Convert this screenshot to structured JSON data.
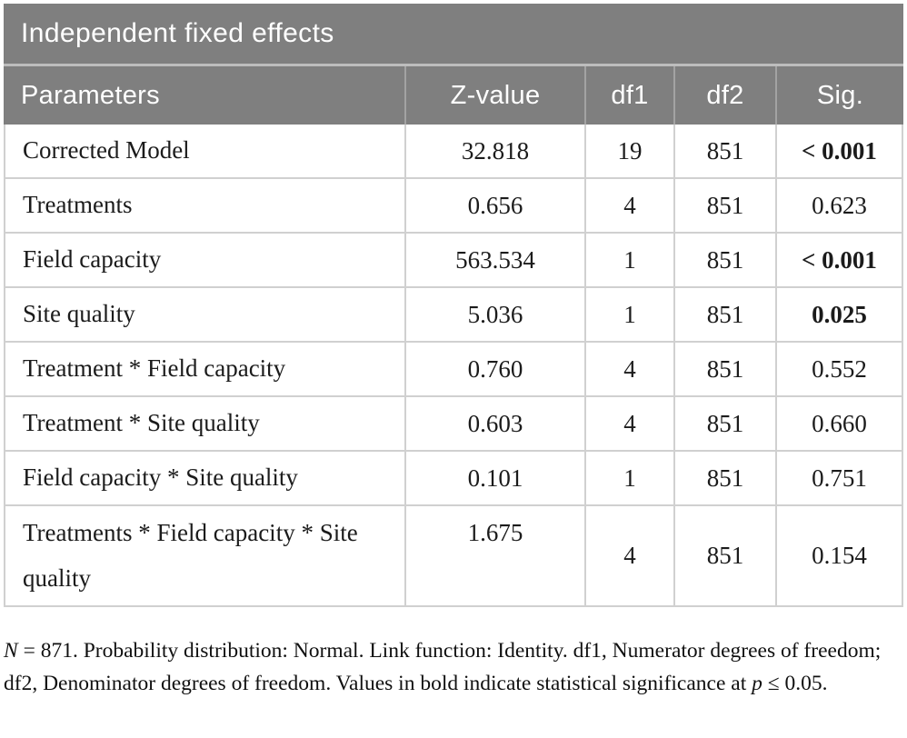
{
  "table": {
    "title": "Independent fixed effects",
    "columns": [
      "Parameters",
      "Z-value",
      "df1",
      "df2",
      "Sig."
    ],
    "rows": [
      {
        "parameter": "Corrected Model",
        "z": "32.818",
        "df1": "19",
        "df2": "851",
        "sig": "< 0.001",
        "sig_bold": true,
        "tall": false,
        "z_top": false
      },
      {
        "parameter": "Treatments",
        "z": "0.656",
        "df1": "4",
        "df2": "851",
        "sig": "0.623",
        "sig_bold": false,
        "tall": false,
        "z_top": false
      },
      {
        "parameter": "Field capacity",
        "z": "563.534",
        "df1": "1",
        "df2": "851",
        "sig": "< 0.001",
        "sig_bold": true,
        "tall": false,
        "z_top": false
      },
      {
        "parameter": "Site quality",
        "z": "5.036",
        "df1": "1",
        "df2": "851",
        "sig": "0.025",
        "sig_bold": true,
        "tall": false,
        "z_top": false
      },
      {
        "parameter": "Treatment * Field capacity",
        "z": "0.760",
        "df1": "4",
        "df2": "851",
        "sig": "0.552",
        "sig_bold": false,
        "tall": false,
        "z_top": false
      },
      {
        "parameter": "Treatment * Site quality",
        "z": "0.603",
        "df1": "4",
        "df2": "851",
        "sig": "0.660",
        "sig_bold": false,
        "tall": false,
        "z_top": false
      },
      {
        "parameter": "Field capacity * Site quality",
        "z": "0.101",
        "df1": "1",
        "df2": "851",
        "sig": "0.751",
        "sig_bold": false,
        "tall": false,
        "z_top": false
      },
      {
        "parameter": "Treatments * Field capacity * Site quality",
        "z": "1.675",
        "df1": "4",
        "df2": "851",
        "sig": "0.154",
        "sig_bold": false,
        "tall": true,
        "z_top": true
      }
    ],
    "footnote": {
      "n_label": "N",
      "n_rest": " = 871. Probability distribution: Normal. Link function: Identity. df1, Numerator degrees of freedom; df2, Denominator degrees of freedom. Values in bold indicate statistical significance at ",
      "p_label": "p",
      "p_rest": " ≤ 0.05."
    }
  },
  "colors": {
    "header_bg": "#7f7f7f",
    "header_divider": "#a3a3a3",
    "title_gap_line": "#bdbdbd",
    "body_border": "#d0d0d0",
    "body_text": "#1b1b1b",
    "header_text": "#ffffff"
  }
}
